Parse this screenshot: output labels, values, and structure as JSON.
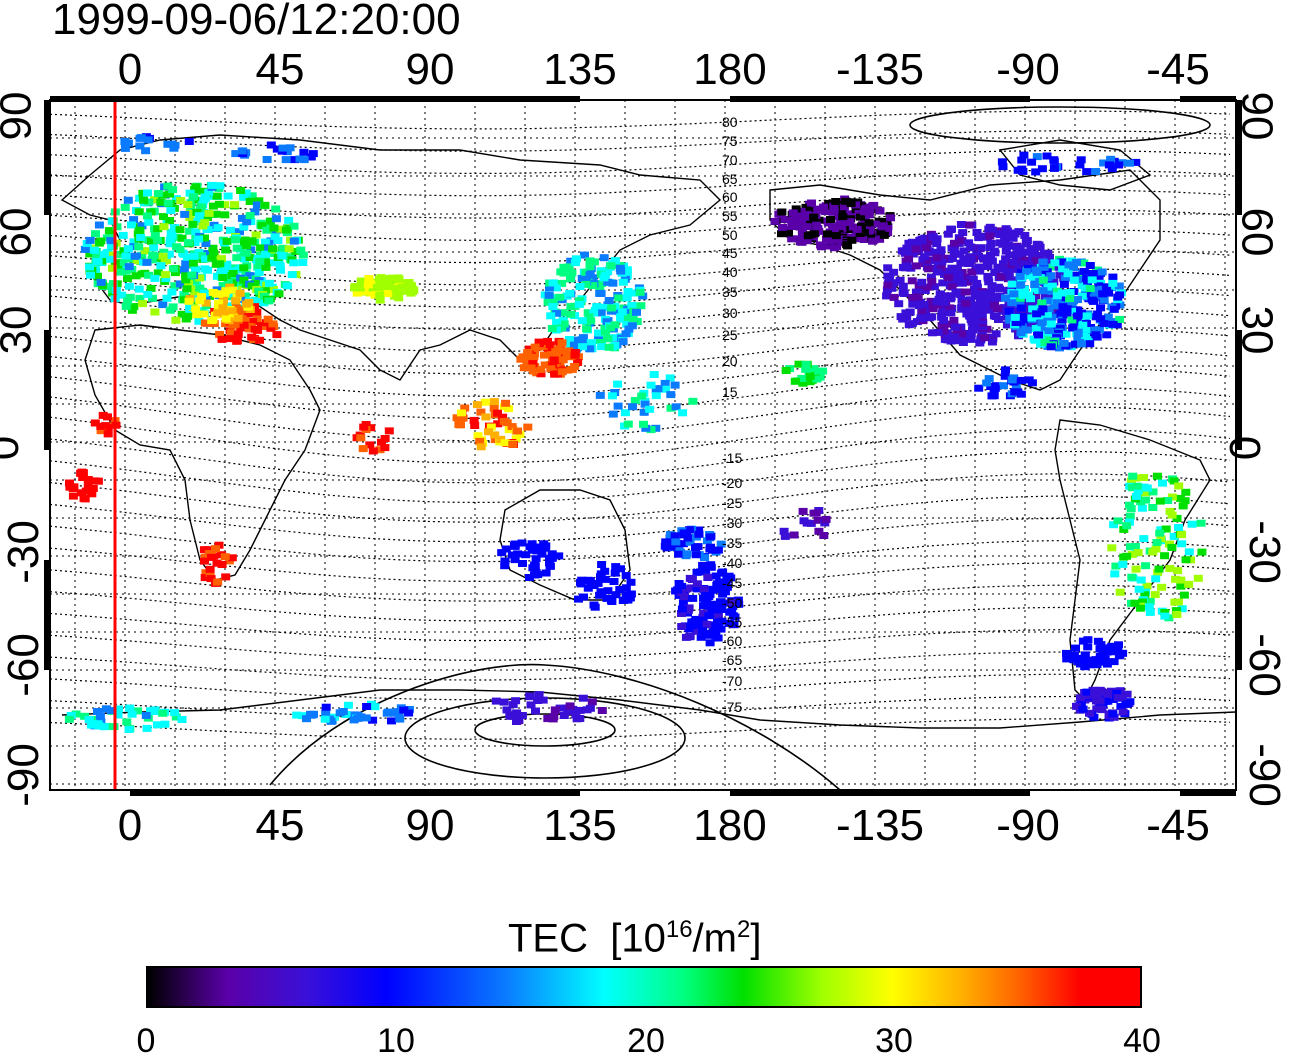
{
  "timestamp": "1999-09-06/12:20:00",
  "axes": {
    "lon_ticks": [
      "0",
      "45",
      "90",
      "135",
      "180",
      "-135",
      "-90",
      "-45"
    ],
    "lat_ticks": [
      "90",
      "60",
      "30",
      "0",
      "-30",
      "-60",
      "-90"
    ]
  },
  "contour_labels": [
    "80",
    "75",
    "70",
    "65",
    "60",
    "55",
    "50",
    "45",
    "40",
    "35",
    "30",
    "25",
    "20",
    "15",
    "-15",
    "-20",
    "-25",
    "-30",
    "-35",
    "-40",
    "-45",
    "-50",
    "-55",
    "-60",
    "-65",
    "-70",
    "-75"
  ],
  "colorbar": {
    "title": "TEC",
    "unit_base": "[10",
    "unit_exp": "16",
    "unit_mid": "/m",
    "unit_exp2": "2",
    "unit_end": "]",
    "ticks": [
      "0",
      "10",
      "20",
      "30",
      "40"
    ],
    "range": [
      0,
      40
    ]
  },
  "colors": {
    "terminator_line": "#ff0000",
    "frame": "#000000"
  }
}
